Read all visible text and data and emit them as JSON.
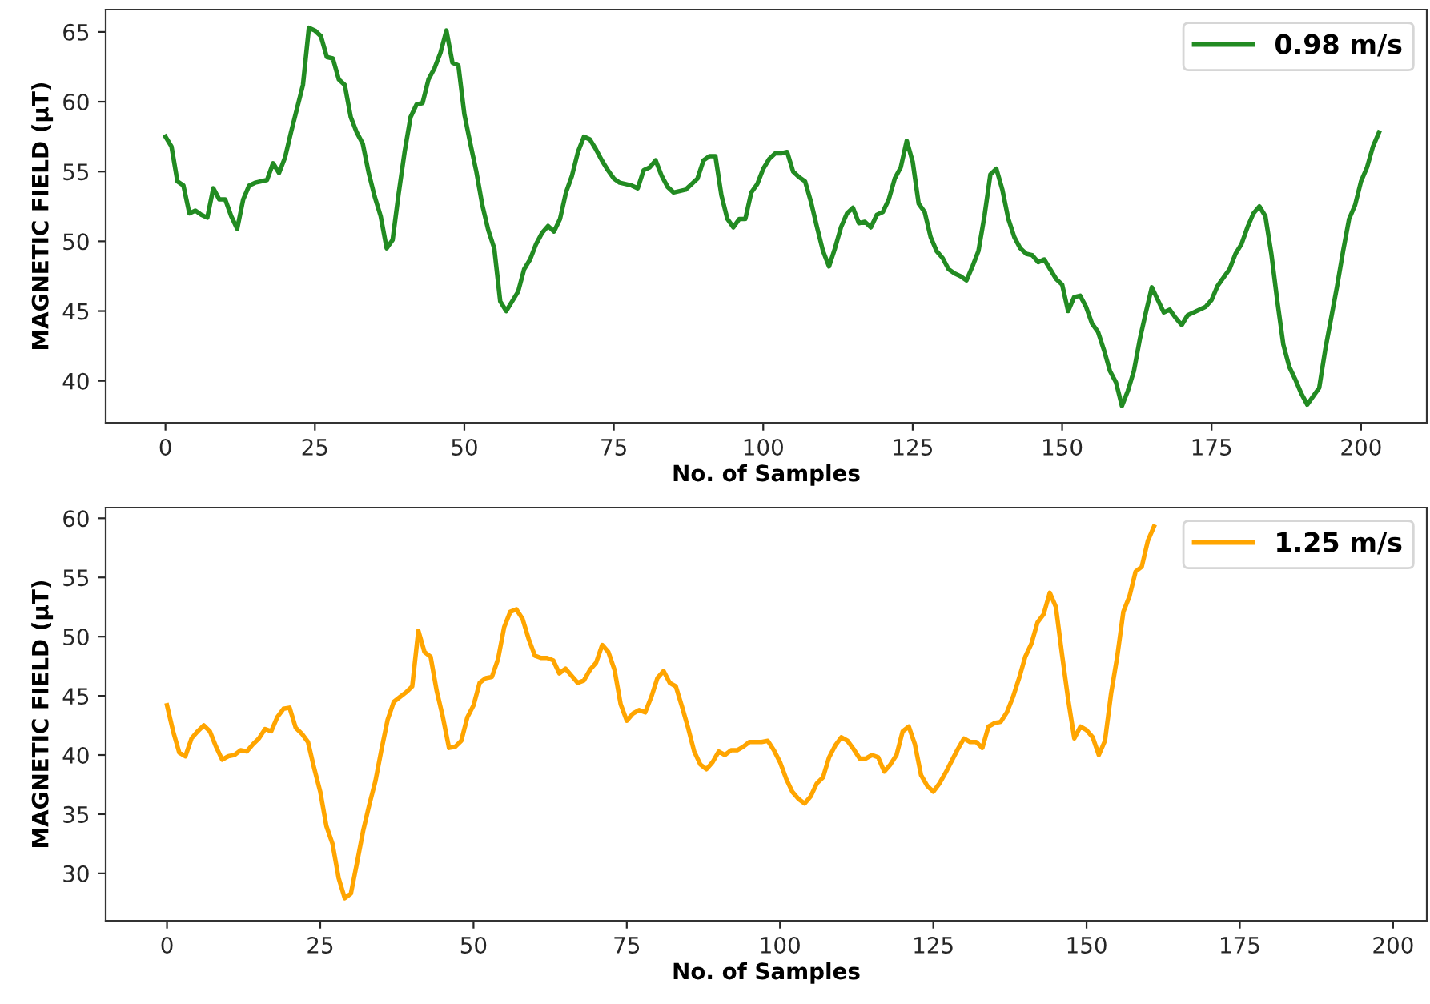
{
  "chart_data": [
    {
      "type": "line",
      "xlabel": "No. of Samples",
      "ylabel": "MAGNETIC FIELD (μT)",
      "xlim": [
        -10,
        211
      ],
      "ylim": [
        37,
        66.6
      ],
      "xticks": [
        0,
        25,
        50,
        75,
        100,
        125,
        150,
        175,
        200
      ],
      "yticks": [
        40,
        45,
        50,
        55,
        60,
        65
      ],
      "legend": "top right",
      "line_style": "solid",
      "x": [
        0,
        1,
        2,
        3,
        4,
        5,
        6,
        7,
        8,
        9,
        10,
        11,
        12,
        13,
        14,
        15,
        17,
        18,
        19,
        20,
        21,
        22,
        23,
        24,
        25,
        26,
        27,
        28,
        29,
        30,
        31,
        32,
        33,
        34,
        35,
        36,
        37,
        38,
        39,
        40,
        41,
        42,
        43,
        44,
        45,
        46,
        47,
        48,
        49,
        50,
        51,
        52,
        53,
        54,
        55,
        56,
        57,
        58,
        59,
        60,
        61,
        62,
        63,
        64,
        65,
        66,
        67,
        68,
        69,
        70,
        71,
        72,
        73,
        74,
        75,
        76,
        77,
        78,
        79,
        80,
        81,
        82,
        83,
        84,
        85,
        86,
        87,
        88,
        89,
        90,
        91,
        92,
        93,
        94,
        95,
        96,
        97,
        98,
        99,
        100,
        101,
        102,
        103,
        104,
        105,
        106,
        107,
        108,
        109,
        110,
        111,
        112,
        113,
        114,
        115,
        116,
        117,
        118,
        119,
        120,
        121,
        122,
        123,
        124,
        125,
        126,
        127,
        128,
        129,
        130,
        131,
        132,
        133,
        134,
        135,
        136,
        137,
        138,
        139,
        140,
        141,
        142,
        143,
        144,
        145,
        146,
        147,
        148,
        149,
        150,
        151,
        152,
        153,
        154,
        155,
        156,
        157,
        158,
        159,
        160,
        161,
        162,
        163,
        164,
        165,
        166,
        167,
        168,
        169,
        170,
        171,
        172,
        173,
        174,
        175,
        176,
        177,
        178,
        179,
        180,
        181,
        182,
        183,
        184,
        185,
        186,
        187,
        188,
        189,
        190,
        191,
        192,
        193,
        194,
        195,
        196,
        197,
        198,
        199,
        200,
        201,
        202,
        203
      ],
      "series": [
        {
          "name": "0.98 m/s",
          "color": "#228b22",
          "values": [
            57.5,
            56.8,
            54.3,
            54.0,
            52.0,
            52.2,
            51.9,
            51.7,
            53.8,
            53.0,
            53.0,
            51.8,
            50.9,
            53.0,
            54.0,
            54.2,
            54.4,
            55.6,
            54.9,
            56.0,
            57.8,
            59.5,
            61.2,
            65.3,
            65.1,
            64.7,
            63.2,
            63.1,
            61.6,
            61.2,
            58.9,
            57.8,
            57.0,
            54.9,
            53.2,
            51.8,
            49.5,
            50.1,
            53.4,
            56.4,
            58.9,
            59.8,
            59.9,
            61.6,
            62.4,
            63.5,
            65.1,
            62.8,
            62.6,
            59.1,
            57.0,
            55.0,
            52.6,
            50.8,
            49.5,
            45.7,
            45.0,
            45.7,
            46.4,
            48.0,
            48.7,
            49.8,
            50.6,
            51.1,
            50.7,
            51.6,
            53.5,
            54.7,
            56.4,
            57.5,
            57.3,
            56.6,
            55.8,
            55.1,
            54.5,
            54.2,
            54.1,
            54.0,
            53.8,
            55.1,
            55.3,
            55.8,
            54.7,
            53.9,
            53.5,
            53.6,
            53.7,
            54.1,
            54.5,
            55.8,
            56.1,
            56.1,
            53.3,
            51.6,
            51.0,
            51.6,
            51.6,
            53.5,
            54.1,
            55.2,
            55.9,
            56.3,
            56.3,
            56.4,
            55.0,
            54.6,
            54.3,
            52.8,
            51.0,
            49.3,
            48.2,
            49.5,
            51.0,
            52.0,
            52.4,
            51.3,
            51.4,
            51.0,
            51.9,
            52.1,
            53.0,
            54.5,
            55.3,
            57.2,
            55.7,
            52.7,
            52.1,
            50.3,
            49.3,
            48.8,
            48.0,
            47.7,
            47.5,
            47.2,
            48.2,
            49.3,
            51.8,
            54.8,
            55.2,
            53.7,
            51.6,
            50.3,
            49.5,
            49.1,
            49.0,
            48.5,
            48.7,
            48.0,
            47.3,
            46.9,
            45.0,
            46.0,
            46.1,
            45.3,
            44.1,
            43.5,
            42.2,
            40.7,
            39.9,
            38.2,
            39.3,
            40.7,
            43.0,
            44.9,
            46.7,
            45.8,
            44.9,
            45.1,
            44.5,
            44.0,
            44.7,
            44.9,
            45.1,
            45.3,
            45.8,
            46.8,
            47.4,
            48.0,
            49.1,
            49.8,
            51.0,
            52.0,
            52.5,
            51.8,
            49.1,
            45.7,
            42.6,
            41.0,
            40.1,
            39.1,
            38.3,
            38.9,
            39.5,
            42.2,
            44.5,
            46.8,
            49.3,
            51.6,
            52.6,
            54.3,
            55.3,
            56.8,
            57.8
          ]
        }
      ]
    },
    {
      "type": "line",
      "xlabel": "No. of Samples",
      "ylabel": "MAGNETIC FIELD (μT)",
      "xlim": [
        -10,
        205.5
      ],
      "ylim": [
        26,
        60.9
      ],
      "xticks": [
        0,
        25,
        50,
        75,
        100,
        125,
        150,
        175,
        200
      ],
      "yticks": [
        30,
        35,
        40,
        45,
        50,
        55,
        60
      ],
      "legend": "top right",
      "line_style": "solid",
      "x": [
        0,
        1,
        2,
        3,
        4,
        5,
        6,
        7,
        8,
        9,
        10,
        11,
        12,
        13,
        14,
        15,
        16,
        17,
        18,
        19,
        20,
        21,
        22,
        23,
        24,
        25,
        26,
        27,
        28,
        29,
        30,
        31,
        32,
        33,
        34,
        35,
        36,
        37,
        38,
        39,
        40,
        41,
        42,
        43,
        44,
        45,
        46,
        47,
        48,
        49,
        50,
        51,
        52,
        53,
        54,
        55,
        56,
        57,
        58,
        59,
        60,
        61,
        62,
        63,
        64,
        65,
        66,
        67,
        68,
        69,
        70,
        71,
        72,
        73,
        74,
        75,
        76,
        77,
        78,
        79,
        80,
        81,
        82,
        83,
        84,
        85,
        86,
        87,
        88,
        89,
        90,
        91,
        92,
        93,
        94,
        95,
        96,
        97,
        98,
        99,
        100,
        101,
        102,
        103,
        104,
        105,
        106,
        107,
        108,
        109,
        110,
        111,
        112,
        113,
        114,
        115,
        116,
        117,
        118,
        119,
        120,
        121,
        122,
        123,
        124,
        125,
        126,
        127,
        128,
        129,
        130,
        131,
        132,
        133,
        134,
        135,
        136,
        137,
        138,
        139,
        140,
        141,
        142,
        143,
        144,
        145,
        146,
        147,
        148,
        149,
        150,
        151,
        152,
        153,
        154,
        155,
        156,
        157,
        158,
        159,
        160,
        161
      ],
      "series": [
        {
          "name": "1.25 m/s",
          "color": "#ffa500",
          "values": [
            44.2,
            42.0,
            40.2,
            39.9,
            41.4,
            42.0,
            42.5,
            42.0,
            40.7,
            39.6,
            39.9,
            40.0,
            40.4,
            40.3,
            40.9,
            41.4,
            42.2,
            42.0,
            43.2,
            43.9,
            44.0,
            42.3,
            41.8,
            41.1,
            38.9,
            36.9,
            34.0,
            32.5,
            29.6,
            27.9,
            28.3,
            30.9,
            33.6,
            35.8,
            37.8,
            40.5,
            43.0,
            44.5,
            44.9,
            45.3,
            45.8,
            50.5,
            48.7,
            48.3,
            45.4,
            43.2,
            40.6,
            40.7,
            41.2,
            43.2,
            44.2,
            46.1,
            46.5,
            46.6,
            48.1,
            50.8,
            52.1,
            52.3,
            51.5,
            49.8,
            48.4,
            48.2,
            48.2,
            48.0,
            46.9,
            47.3,
            46.7,
            46.1,
            46.3,
            47.2,
            47.8,
            49.3,
            48.7,
            47.2,
            44.3,
            42.9,
            43.5,
            43.8,
            43.6,
            44.9,
            46.5,
            47.1,
            46.1,
            45.8,
            44.1,
            42.3,
            40.3,
            39.2,
            38.8,
            39.4,
            40.3,
            40.0,
            40.4,
            40.4,
            40.7,
            41.1,
            41.1,
            41.1,
            41.2,
            40.4,
            39.4,
            38.0,
            36.9,
            36.3,
            35.9,
            36.5,
            37.6,
            38.1,
            39.8,
            40.8,
            41.5,
            41.2,
            40.5,
            39.7,
            39.7,
            40.0,
            39.8,
            38.6,
            39.2,
            40.0,
            42.0,
            42.4,
            40.9,
            38.3,
            37.4,
            36.9,
            37.6,
            38.5,
            39.5,
            40.5,
            41.4,
            41.1,
            41.1,
            40.6,
            42.4,
            42.7,
            42.8,
            43.6,
            44.9,
            46.5,
            48.3,
            49.4,
            51.2,
            51.9,
            53.7,
            52.5,
            48.5,
            44.7,
            41.4,
            42.4,
            42.1,
            41.5,
            40.0,
            41.2,
            45.2,
            48.3,
            52.1,
            53.4,
            55.5,
            55.9,
            58.1,
            59.3
          ]
        }
      ]
    }
  ]
}
